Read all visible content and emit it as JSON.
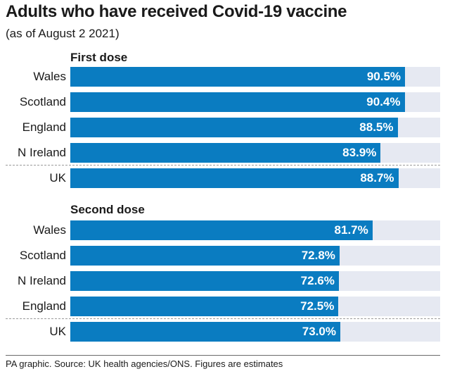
{
  "title": "Adults who have received Covid-19 vaccine",
  "subtitle": "(as of August 2 2021)",
  "source": "PA graphic. Source: UK health agencies/ONS. Figures are estimates",
  "colors": {
    "bar": "#0a7cc1",
    "track": "#e6e9f2",
    "value_text": "#ffffff"
  },
  "chart_data": {
    "type": "bar",
    "orientation": "horizontal",
    "xlim": [
      0,
      100
    ],
    "unit": "%",
    "groups": [
      {
        "name": "First dose",
        "categories": [
          "Wales",
          "Scotland",
          "England",
          "N Ireland",
          "UK"
        ],
        "values": [
          90.5,
          90.4,
          88.5,
          83.9,
          88.7
        ],
        "value_labels": [
          "90.5%",
          "90.4%",
          "88.5%",
          "83.9%",
          "88.7%"
        ]
      },
      {
        "name": "Second dose",
        "categories": [
          "Wales",
          "Scotland",
          "N Ireland",
          "England",
          "UK"
        ],
        "values": [
          81.7,
          72.8,
          72.6,
          72.5,
          73.0
        ],
        "value_labels": [
          "81.7%",
          "72.8%",
          "72.6%",
          "72.5%",
          "73.0%"
        ]
      }
    ]
  }
}
